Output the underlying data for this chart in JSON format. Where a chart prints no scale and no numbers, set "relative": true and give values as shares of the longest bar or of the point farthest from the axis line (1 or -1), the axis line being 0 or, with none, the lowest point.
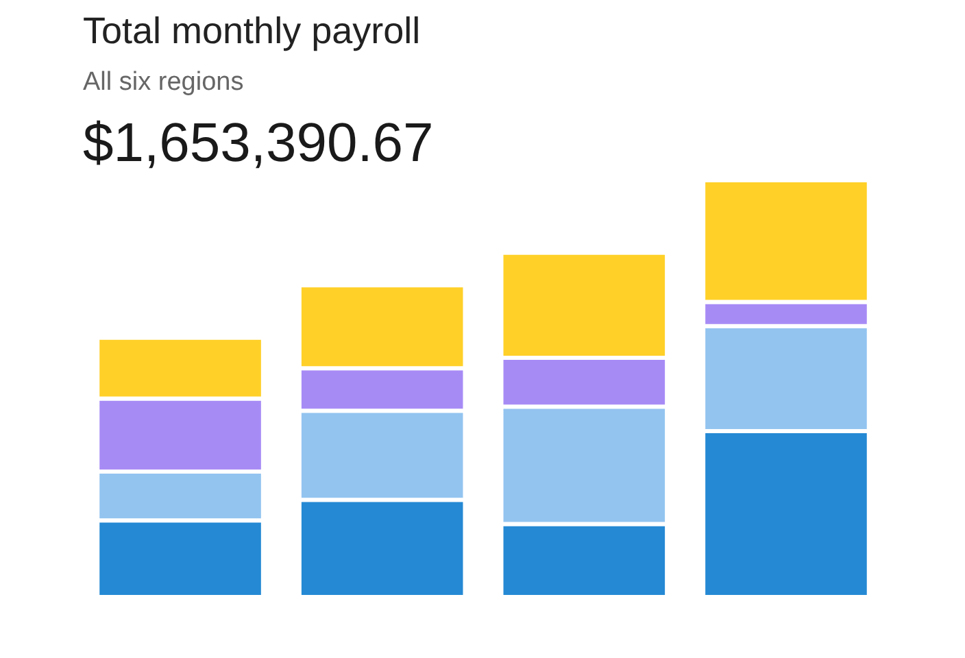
{
  "chart_data": {
    "type": "bar",
    "title": "Total monthly payroll",
    "subtitle": "All six regions",
    "annotations": [
      "$1,653,390.67"
    ],
    "categories": [
      null,
      null,
      null,
      null
    ],
    "relative": true,
    "stacked": true,
    "series": [
      {
        "color": "#2589d4",
        "values": [
          0.184,
          0.233,
          0.175,
          0.398
        ]
      },
      {
        "color": "#93c4f0",
        "values": [
          0.117,
          0.214,
          0.282,
          0.252
        ]
      },
      {
        "color": "#a78bf5",
        "values": [
          0.175,
          0.102,
          0.117,
          0.058
        ]
      },
      {
        "color": "#ffd028",
        "values": [
          0.146,
          0.199,
          0.252,
          0.292
        ]
      }
    ]
  }
}
